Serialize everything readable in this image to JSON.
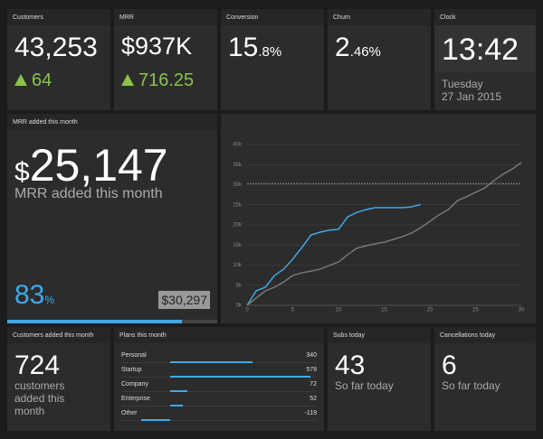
{
  "customers": {
    "title": "Customers",
    "value": "43,253",
    "change": "64"
  },
  "mrr": {
    "title": "MRR",
    "value": "$937K",
    "change": "716.25"
  },
  "conversion": {
    "title": "Conversion",
    "value": "15",
    "fraction": ".8%"
  },
  "churn": {
    "title": "Churn",
    "value": "2",
    "fraction": ".46%"
  },
  "clock": {
    "title": "Clock",
    "time": "13:42",
    "day": "Tuesday",
    "date": "27 Jan 2015"
  },
  "mrr_added": {
    "title": "MRR added this month",
    "currency": "$",
    "value": "25,147",
    "label": "MRR added this month",
    "progress": {
      "value": 83,
      "unit": "%"
    },
    "target": "$30,297"
  },
  "chart_data": {
    "type": "line",
    "x": [
      0,
      1,
      2,
      3,
      4,
      5,
      6,
      7,
      8,
      9,
      10,
      11,
      12,
      13,
      14,
      15,
      16,
      17,
      18,
      19,
      20,
      21,
      22,
      23,
      24,
      25,
      26,
      27,
      28,
      29,
      30
    ],
    "series": [
      {
        "color": "#3fa9e8",
        "values": [
          0,
          3.6,
          4.5,
          7.4,
          9,
          11.5,
          14.4,
          17.5,
          18.2,
          18.7,
          18.9,
          22,
          23.1,
          23.8,
          24.3,
          24.3,
          24.3,
          24.3,
          24.5,
          25.1,
          null,
          null,
          null,
          null,
          null,
          null,
          null,
          null,
          null,
          null,
          null
        ]
      },
      {
        "color": "#777777",
        "values": [
          0,
          1.8,
          3.6,
          4.5,
          5.8,
          7.4,
          8.1,
          8.5,
          9,
          9.9,
          10.8,
          12.6,
          14.2,
          14.8,
          15.3,
          15.7,
          16.4,
          17.1,
          18,
          19.3,
          20.9,
          22.5,
          23.8,
          26,
          27,
          28.1,
          29.2,
          31,
          32.6,
          33.9,
          35.5
        ]
      }
    ],
    "target": 30.297,
    "xlim": [
      0,
      30
    ],
    "xticks": [
      0,
      5,
      10,
      15,
      20,
      25,
      30
    ],
    "ylim": [
      0,
      40
    ],
    "yticks": [
      {
        "value": 0,
        "label": "0k"
      },
      {
        "value": 5,
        "label": "5k"
      },
      {
        "value": 10,
        "label": "10k"
      },
      {
        "value": 15,
        "label": "15k"
      },
      {
        "value": 20,
        "label": "20k"
      },
      {
        "value": 25,
        "label": "25k"
      },
      {
        "value": 30,
        "label": "30k"
      },
      {
        "value": 35,
        "label": "35k"
      },
      {
        "value": 40,
        "label": "40k"
      }
    ],
    "grid": true
  },
  "customers_added": {
    "title": "Customers added this month",
    "value": "724",
    "label": "customers added this month"
  },
  "plans": {
    "title": "Plans this month",
    "rows": [
      {
        "name": "Personal",
        "value": 340
      },
      {
        "name": "Startup",
        "value": 579
      },
      {
        "name": "Company",
        "value": 72
      },
      {
        "name": "Enterprise",
        "value": 52
      },
      {
        "name": "Other",
        "value": -119
      }
    ]
  },
  "subs": {
    "title": "Subs today",
    "value": "43",
    "label": "So far today"
  },
  "cancellations": {
    "title": "Cancellations today",
    "value": "6",
    "label": "So far today"
  }
}
